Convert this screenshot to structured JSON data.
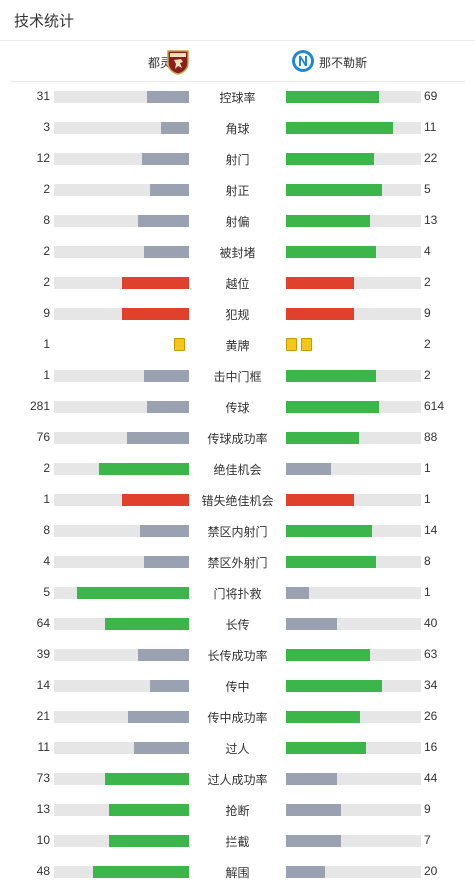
{
  "header": {
    "title": "技术统计"
  },
  "teams": {
    "home": "都灵",
    "away": "那不勒斯"
  },
  "colors": {
    "green": "#3cb54a",
    "gray": "#9aa2b1",
    "red": "#e0412c",
    "track": "#e6e6e6",
    "yellow": "#f5c518"
  },
  "stats": [
    {
      "label": "控球率",
      "home": "31",
      "away": "69",
      "home_frac": 0.31,
      "away_frac": 0.69,
      "home_color": "gray",
      "away_color": "green"
    },
    {
      "label": "角球",
      "home": "3",
      "away": "11",
      "home_frac": 0.21,
      "away_frac": 0.79,
      "home_color": "gray",
      "away_color": "green"
    },
    {
      "label": "射门",
      "home": "12",
      "away": "22",
      "home_frac": 0.35,
      "away_frac": 0.65,
      "home_color": "gray",
      "away_color": "green"
    },
    {
      "label": "射正",
      "home": "2",
      "away": "5",
      "home_frac": 0.29,
      "away_frac": 0.71,
      "home_color": "gray",
      "away_color": "green"
    },
    {
      "label": "射偏",
      "home": "8",
      "away": "13",
      "home_frac": 0.38,
      "away_frac": 0.62,
      "home_color": "gray",
      "away_color": "green"
    },
    {
      "label": "被封堵",
      "home": "2",
      "away": "4",
      "home_frac": 0.33,
      "away_frac": 0.67,
      "home_color": "gray",
      "away_color": "green"
    },
    {
      "label": "越位",
      "home": "2",
      "away": "2",
      "home_frac": 0.5,
      "away_frac": 0.5,
      "home_color": "red",
      "away_color": "red"
    },
    {
      "label": "犯规",
      "home": "9",
      "away": "9",
      "home_frac": 0.5,
      "away_frac": 0.5,
      "home_color": "red",
      "away_color": "red"
    },
    {
      "label": "黄牌",
      "home": "1",
      "away": "2",
      "home_cards": 1,
      "away_cards": 2
    },
    {
      "label": "击中门框",
      "home": "1",
      "away": "2",
      "home_frac": 0.33,
      "away_frac": 0.67,
      "home_color": "gray",
      "away_color": "green"
    },
    {
      "label": "传球",
      "home": "281",
      "away": "614",
      "home_frac": 0.31,
      "away_frac": 0.69,
      "home_color": "gray",
      "away_color": "green"
    },
    {
      "label": "传球成功率",
      "home": "76",
      "away": "88",
      "home_frac": 0.46,
      "away_frac": 0.54,
      "home_color": "gray",
      "away_color": "green"
    },
    {
      "label": "绝佳机会",
      "home": "2",
      "away": "1",
      "home_frac": 0.67,
      "away_frac": 0.33,
      "home_color": "green",
      "away_color": "gray"
    },
    {
      "label": "错失绝佳机会",
      "home": "1",
      "away": "1",
      "home_frac": 0.5,
      "away_frac": 0.5,
      "home_color": "red",
      "away_color": "red"
    },
    {
      "label": "禁区内射门",
      "home": "8",
      "away": "14",
      "home_frac": 0.36,
      "away_frac": 0.64,
      "home_color": "gray",
      "away_color": "green"
    },
    {
      "label": "禁区外射门",
      "home": "4",
      "away": "8",
      "home_frac": 0.33,
      "away_frac": 0.67,
      "home_color": "gray",
      "away_color": "green"
    },
    {
      "label": "门将扑救",
      "home": "5",
      "away": "1",
      "home_frac": 0.83,
      "away_frac": 0.17,
      "home_color": "green",
      "away_color": "gray"
    },
    {
      "label": "长传",
      "home": "64",
      "away": "40",
      "home_frac": 0.62,
      "away_frac": 0.38,
      "home_color": "green",
      "away_color": "gray"
    },
    {
      "label": "长传成功率",
      "home": "39",
      "away": "63",
      "home_frac": 0.38,
      "away_frac": 0.62,
      "home_color": "gray",
      "away_color": "green"
    },
    {
      "label": "传中",
      "home": "14",
      "away": "34",
      "home_frac": 0.29,
      "away_frac": 0.71,
      "home_color": "gray",
      "away_color": "green"
    },
    {
      "label": "传中成功率",
      "home": "21",
      "away": "26",
      "home_frac": 0.45,
      "away_frac": 0.55,
      "home_color": "gray",
      "away_color": "green"
    },
    {
      "label": "过人",
      "home": "11",
      "away": "16",
      "home_frac": 0.41,
      "away_frac": 0.59,
      "home_color": "gray",
      "away_color": "green"
    },
    {
      "label": "过人成功率",
      "home": "73",
      "away": "44",
      "home_frac": 0.62,
      "away_frac": 0.38,
      "home_color": "green",
      "away_color": "gray"
    },
    {
      "label": "抢断",
      "home": "13",
      "away": "9",
      "home_frac": 0.59,
      "away_frac": 0.41,
      "home_color": "green",
      "away_color": "gray"
    },
    {
      "label": "拦截",
      "home": "10",
      "away": "7",
      "home_frac": 0.59,
      "away_frac": 0.41,
      "home_color": "green",
      "away_color": "gray"
    },
    {
      "label": "解围",
      "home": "48",
      "away": "20",
      "home_frac": 0.71,
      "away_frac": 0.29,
      "home_color": "green",
      "away_color": "gray"
    }
  ]
}
